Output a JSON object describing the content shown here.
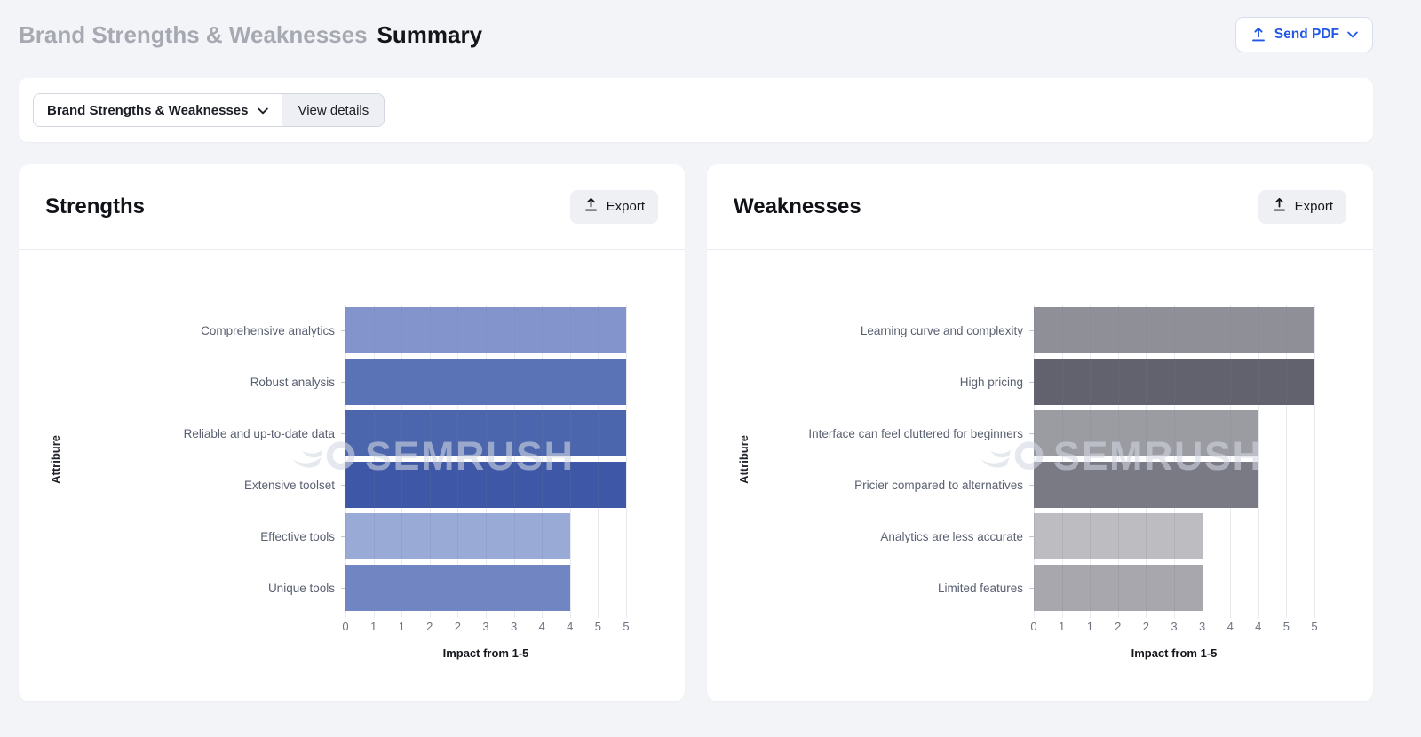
{
  "header": {
    "title_muted": "Brand Strengths & Weaknesses",
    "title_active": "Summary",
    "send_pdf_label": "Send PDF",
    "accent_blue": "#2258e4"
  },
  "toolbar": {
    "report_dropdown_label": "Brand Strengths & Weaknesses",
    "view_details_label": "View details"
  },
  "icons": {
    "send_pdf": "upload-icon",
    "report_dropdown": "chevron-down-icon",
    "export": "upload-icon",
    "watermark_logo": "semrush-logo"
  },
  "chart_data": [
    {
      "type": "bar",
      "orientation": "horizontal",
      "panel_title": "Strengths",
      "export_label": "Export",
      "categories": [
        "Comprehensive analytics",
        "Robust analysis",
        "Reliable and up-to-date data",
        "Extensive toolset",
        "Effective tools",
        "Unique tools"
      ],
      "values": [
        5,
        5,
        5,
        5,
        4,
        4
      ],
      "bar_colors": [
        "#8294CB",
        "#5A73B7",
        "#4C66AE",
        "#3E57A6",
        "#9AAAD7",
        "#7185C2"
      ],
      "xlabel": "Impact from 1-5",
      "ylabel": "Attribure",
      "xlim": [
        0,
        5
      ],
      "x_tick_labels": [
        "0",
        "1",
        "1",
        "2",
        "2",
        "3",
        "3",
        "4",
        "4",
        "5",
        "5"
      ],
      "grid": true,
      "legend": false,
      "watermark": "SEMRUSH"
    },
    {
      "type": "bar",
      "orientation": "horizontal",
      "panel_title": "Weaknesses",
      "export_label": "Export",
      "categories": [
        "Learning curve and complexity",
        "High pricing",
        "Interface can feel cluttered for beginners",
        "Pricier compared to alternatives",
        "Analytics are less accurate",
        "Limited features"
      ],
      "values": [
        5,
        5,
        4,
        4,
        3,
        3
      ],
      "bar_colors": [
        "#8F8F97",
        "#62626E",
        "#9B9BA2",
        "#7A7A84",
        "#BCBCC1",
        "#A7A7AD"
      ],
      "xlabel": "Impact from 1-5",
      "ylabel": "Attribure",
      "xlim": [
        0,
        5
      ],
      "x_tick_labels": [
        "0",
        "1",
        "1",
        "2",
        "2",
        "3",
        "3",
        "4",
        "4",
        "5",
        "5"
      ],
      "grid": true,
      "legend": false,
      "watermark": "SEMRUSH"
    }
  ]
}
